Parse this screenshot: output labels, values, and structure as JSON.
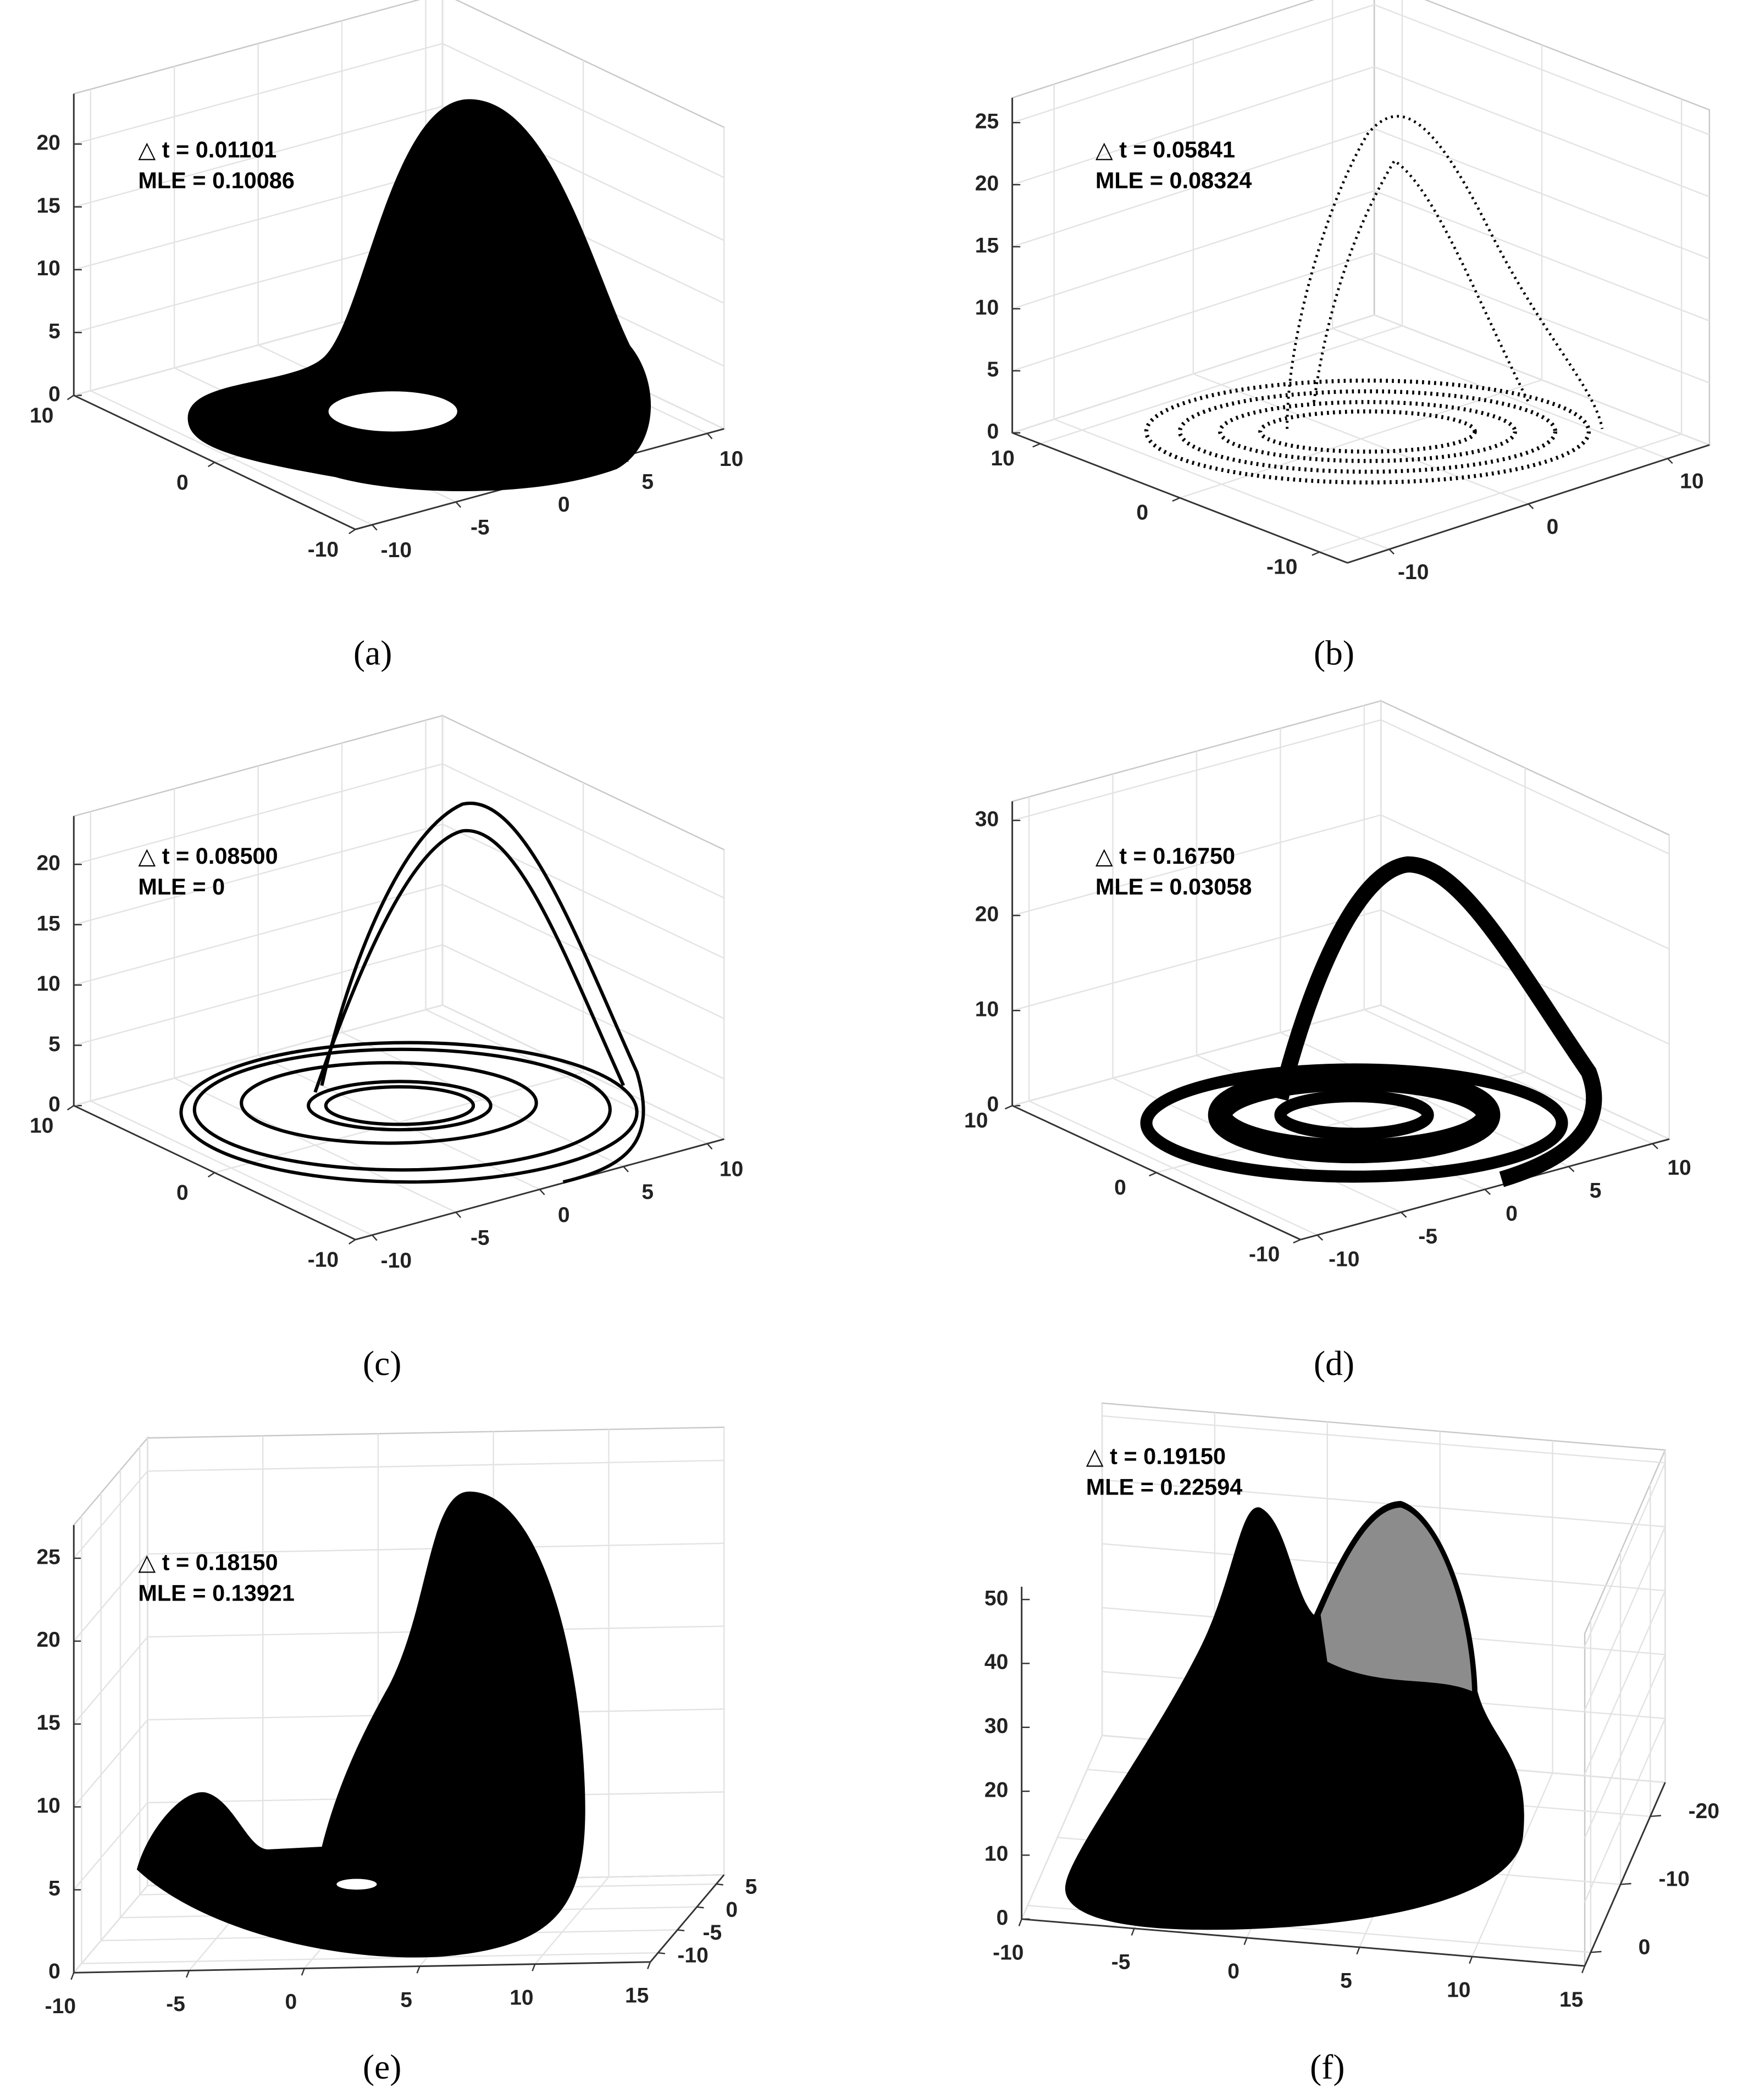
{
  "chart_data": [
    {
      "type": "scatter3d",
      "label": "(a)",
      "annotations": [
        "△ t = 0.01101",
        "MLE = 0.10086"
      ],
      "xlim": [
        -11,
        11
      ],
      "ylim": [
        -10,
        10
      ],
      "zlim": [
        0,
        24
      ],
      "xticks": [
        -10,
        -5,
        0,
        5,
        10
      ],
      "yticks": [
        -10,
        0,
        10
      ],
      "zticks": [
        0,
        5,
        10,
        15,
        20
      ],
      "grid": true
    },
    {
      "type": "scatter3d",
      "label": "(b)",
      "annotations": [
        "△ t = 0.05841",
        "MLE = 0.08324"
      ],
      "xlim": [
        -13,
        13
      ],
      "ylim": [
        -12,
        12
      ],
      "zlim": [
        0,
        27
      ],
      "xticks": [
        -10,
        0,
        10
      ],
      "yticks": [
        -10,
        0,
        10
      ],
      "zticks": [
        0,
        5,
        10,
        15,
        20,
        25
      ],
      "grid": true
    },
    {
      "type": "scatter3d",
      "label": "(c)",
      "annotations": [
        "△ t = 0.08500",
        "MLE = 0"
      ],
      "xlim": [
        -11,
        11
      ],
      "ylim": [
        -10,
        10
      ],
      "zlim": [
        0,
        24
      ],
      "xticks": [
        -10,
        -5,
        0,
        5,
        10
      ],
      "yticks": [
        -10,
        0,
        10
      ],
      "zticks": [
        0,
        5,
        10,
        15,
        20
      ],
      "grid": true
    },
    {
      "type": "scatter3d",
      "label": "(d)",
      "annotations": [
        "△ t = 0.16750",
        "MLE = 0.03058"
      ],
      "xlim": [
        -11,
        11
      ],
      "ylim": [
        -10,
        10
      ],
      "zlim": [
        0,
        32
      ],
      "xticks": [
        -10,
        -5,
        0,
        5,
        10
      ],
      "yticks": [
        -10,
        0,
        10
      ],
      "zticks": [
        0,
        10,
        20,
        30
      ],
      "grid": true
    },
    {
      "type": "scatter3d",
      "label": "(e)",
      "annotations": [
        "△ t = 0.18150",
        "MLE = 0.13921"
      ],
      "xlim": [
        -10,
        15
      ],
      "ylim": [
        -12,
        7
      ],
      "zlim": [
        0,
        27
      ],
      "xticks": [
        -10,
        -5,
        0,
        5,
        10,
        15
      ],
      "yticks": [
        -10,
        -5,
        0,
        5
      ],
      "zticks": [
        0,
        5,
        10,
        15,
        20,
        25
      ],
      "grid": true
    },
    {
      "type": "scatter3d",
      "label": "(f)",
      "annotations": [
        "△ t = 0.19150",
        "MLE = 0.22594"
      ],
      "xlim": [
        -10,
        15
      ],
      "ylim": [
        -25,
        2
      ],
      "zlim": [
        0,
        52
      ],
      "xticks": [
        -10,
        -5,
        0,
        5,
        10,
        15
      ],
      "yticks": [
        -20,
        -10,
        0
      ],
      "zticks": [
        0,
        10,
        20,
        30,
        40,
        50
      ],
      "grid": true
    }
  ]
}
